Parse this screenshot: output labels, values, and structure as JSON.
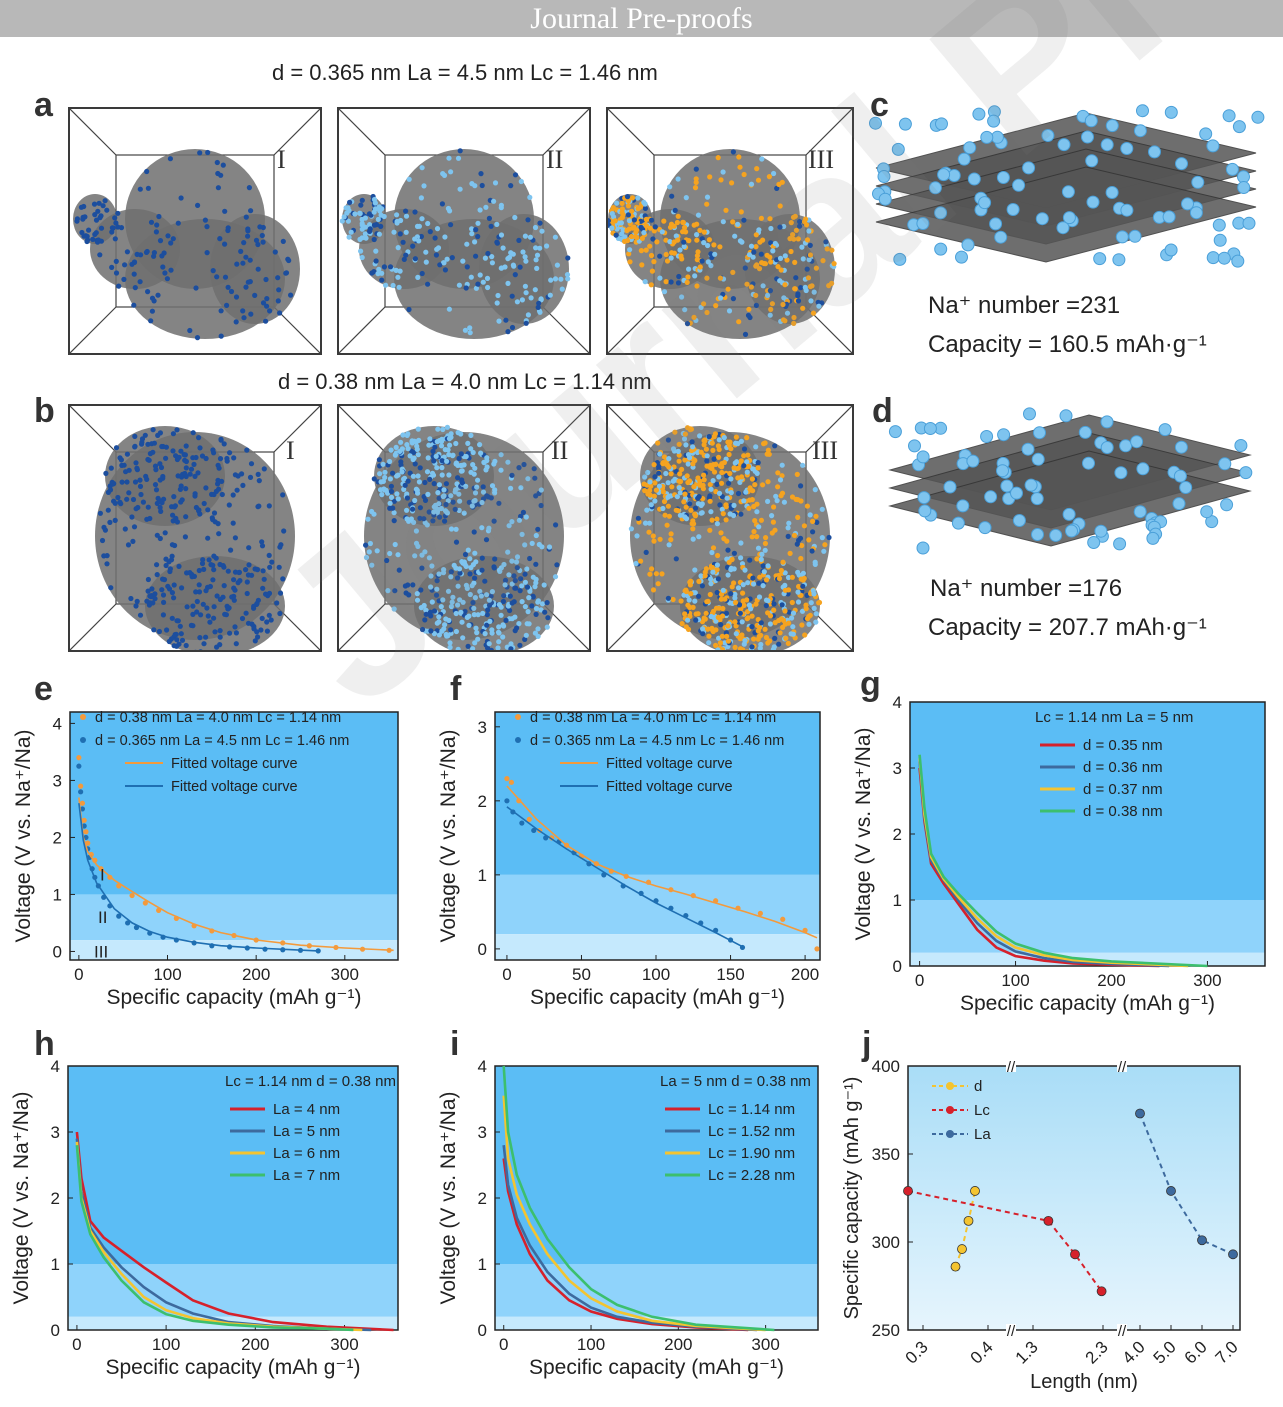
{
  "banner": "Journal Pre-proofs",
  "panel_letters": {
    "a": "a",
    "b": "b",
    "c": "c",
    "d": "d",
    "e": "e",
    "f": "f",
    "g": "g",
    "h": "h",
    "i": "i",
    "j": "j"
  },
  "row_a": {
    "caption_prefix": "d",
    "caption_rest": " = 0.365 nm  L",
    "caption": "d = 0.365 nm  La = 4.5 nm  Lc = 1.46 nm",
    "stages": [
      "I",
      "II",
      "III"
    ]
  },
  "row_b": {
    "caption": "d = 0.38 nm  La = 4.0 nm  Lc = 1.14 nm",
    "stages": [
      "I",
      "II",
      "III"
    ]
  },
  "panel_c": {
    "number_text": "Na⁺ number =231",
    "capacity_text": "Capacity = 160.5 mAh·g⁻¹"
  },
  "panel_d": {
    "number_text": "Na⁺ number =176",
    "capacity_text": "Capacity = 207.7 mAh·g⁻¹"
  },
  "colors": {
    "bg_top": "#5bbdf5",
    "bg_mid": "#8fd3fb",
    "bg_low": "#c5e9fd",
    "orange": "#f39a3c",
    "blue": "#1f6fb2",
    "red": "#d6212b",
    "steel": "#3d6a9e",
    "yellow": "#f4c430",
    "green": "#3cbf6e",
    "particle_dark": "#1c4e9e",
    "particle_light": "#7ec4ef",
    "particle_orange": "#f5a320",
    "graphite": "#6e6e6e"
  },
  "chart_data": [
    {
      "id": "e",
      "type": "scatter",
      "xlabel": "Specific capacity (mAh g⁻¹)",
      "ylabel": "Voltage (V vs. Na⁺/Na)",
      "xlim": [
        -10,
        360
      ],
      "ylim": [
        -0.15,
        4.2
      ],
      "xticks": [
        0,
        100,
        200,
        300
      ],
      "yticks": [
        0,
        1,
        2,
        3,
        4
      ],
      "regions": [
        "I",
        "II",
        "III"
      ],
      "legend": [
        "d = 0.38 nm La = 4.0 nm Lc = 1.14 nm",
        "d = 0.365 nm La = 4.5 nm Lc = 1.46 nm",
        "Fitted voltage curve",
        "Fitted voltage curve"
      ],
      "series": [
        {
          "name": "d = 0.38 nm",
          "color": "orange",
          "kind": "points",
          "x": [
            0,
            2,
            4,
            6,
            8,
            10,
            14,
            18,
            25,
            35,
            45,
            60,
            75,
            90,
            110,
            130,
            150,
            175,
            200,
            230,
            260,
            290,
            320,
            350
          ],
          "y": [
            3.4,
            2.9,
            2.6,
            2.3,
            2.1,
            1.9,
            1.7,
            1.6,
            1.45,
            1.3,
            1.15,
            0.98,
            0.85,
            0.72,
            0.58,
            0.45,
            0.36,
            0.28,
            0.2,
            0.15,
            0.1,
            0.07,
            0.04,
            0.02
          ]
        },
        {
          "name": "d = 0.365 nm",
          "color": "blue",
          "kind": "points",
          "x": [
            0,
            2,
            4,
            6,
            8,
            10,
            12,
            15,
            18,
            22,
            28,
            35,
            45,
            55,
            65,
            80,
            95,
            110,
            130,
            150,
            170,
            190,
            210,
            230,
            250,
            270
          ],
          "y": [
            3.25,
            2.8,
            2.5,
            2.2,
            2.0,
            1.8,
            1.65,
            1.45,
            1.3,
            1.15,
            0.95,
            0.8,
            0.62,
            0.5,
            0.42,
            0.32,
            0.25,
            0.2,
            0.15,
            0.1,
            0.08,
            0.06,
            0.04,
            0.03,
            0.02,
            0.01
          ]
        },
        {
          "name": "Fitted voltage curve",
          "color": "orange",
          "kind": "line",
          "x": [
            0,
            5,
            10,
            20,
            40,
            60,
            80,
            100,
            130,
            160,
            200,
            250,
            300,
            355
          ],
          "y": [
            2.7,
            2.0,
            1.75,
            1.52,
            1.25,
            1.05,
            0.86,
            0.68,
            0.48,
            0.33,
            0.2,
            0.11,
            0.06,
            0.02
          ]
        },
        {
          "name": "Fitted voltage curve",
          "color": "blue",
          "kind": "line",
          "x": [
            0,
            5,
            10,
            20,
            40,
            60,
            80,
            100,
            130,
            160,
            200,
            240,
            270
          ],
          "y": [
            2.6,
            1.95,
            1.6,
            1.2,
            0.75,
            0.5,
            0.35,
            0.25,
            0.16,
            0.1,
            0.06,
            0.03,
            0.01
          ]
        }
      ]
    },
    {
      "id": "f",
      "type": "scatter",
      "xlabel": "Specific capacity (mAh g⁻¹)",
      "ylabel": "Voltage (V vs. Na⁺/Na)",
      "xlim": [
        -8,
        210
      ],
      "ylim": [
        -0.15,
        3.2
      ],
      "xticks": [
        0,
        50,
        100,
        150,
        200
      ],
      "yticks": [
        0,
        1,
        2,
        3
      ],
      "legend": [
        "d = 0.38 nm La = 4.0 nm Lc = 1.14 nm",
        "d = 0.365 nm La = 4.5 nm Lc = 1.46 nm",
        "Fitted voltage curve",
        "Fitted voltage curve"
      ],
      "series": [
        {
          "name": "d = 0.38 nm",
          "color": "orange",
          "kind": "points",
          "x": [
            0,
            3,
            8,
            15,
            22,
            30,
            40,
            50,
            60,
            70,
            80,
            95,
            110,
            125,
            140,
            155,
            170,
            185,
            200,
            208
          ],
          "y": [
            2.3,
            2.25,
            2.0,
            1.75,
            1.6,
            1.5,
            1.4,
            1.25,
            1.15,
            1.05,
            0.98,
            0.9,
            0.8,
            0.72,
            0.65,
            0.55,
            0.48,
            0.4,
            0.25,
            0.0
          ]
        },
        {
          "name": "d = 0.365 nm",
          "color": "blue",
          "kind": "points",
          "x": [
            0,
            4,
            10,
            18,
            26,
            35,
            45,
            55,
            65,
            78,
            90,
            100,
            110,
            120,
            130,
            140,
            150,
            158
          ],
          "y": [
            2.0,
            1.85,
            1.7,
            1.6,
            1.5,
            1.45,
            1.3,
            1.15,
            1.0,
            0.85,
            0.75,
            0.65,
            0.55,
            0.45,
            0.35,
            0.25,
            0.12,
            0.02
          ]
        },
        {
          "name": "Fitted voltage curve",
          "color": "orange",
          "kind": "line",
          "x": [
            0,
            20,
            40,
            60,
            80,
            100,
            120,
            140,
            160,
            180,
            200,
            208
          ],
          "y": [
            2.2,
            1.75,
            1.4,
            1.15,
            0.98,
            0.85,
            0.74,
            0.62,
            0.5,
            0.37,
            0.22,
            0.15
          ]
        },
        {
          "name": "Fitted voltage curve",
          "color": "blue",
          "kind": "line",
          "x": [
            0,
            20,
            40,
            60,
            80,
            100,
            120,
            140,
            158
          ],
          "y": [
            1.92,
            1.62,
            1.35,
            1.1,
            0.85,
            0.62,
            0.42,
            0.22,
            0.03
          ]
        }
      ]
    },
    {
      "id": "g",
      "type": "line",
      "xlabel": "Specific capacity (mAh g⁻¹)",
      "ylabel": "Voltage (V vs. Na⁺/Na)",
      "xlim": [
        -10,
        360
      ],
      "ylim": [
        0,
        4
      ],
      "xticks": [
        0,
        100,
        200,
        300
      ],
      "yticks": [
        0,
        1,
        2,
        3,
        4
      ],
      "legend_title": "Lc = 1.14 nm   La = 5 nm",
      "series": [
        {
          "name": "d = 0.35 nm",
          "color": "red",
          "x": [
            0,
            5,
            12,
            25,
            40,
            60,
            80,
            100,
            130,
            160,
            200,
            250
          ],
          "y": [
            3.0,
            2.2,
            1.55,
            1.25,
            0.95,
            0.55,
            0.28,
            0.15,
            0.08,
            0.04,
            0.02,
            0.0
          ]
        },
        {
          "name": "d = 0.36 nm",
          "color": "steel",
          "x": [
            0,
            5,
            12,
            25,
            40,
            60,
            80,
            100,
            130,
            160,
            200,
            260
          ],
          "y": [
            3.1,
            2.25,
            1.6,
            1.3,
            1.0,
            0.65,
            0.38,
            0.22,
            0.12,
            0.06,
            0.03,
            0.0
          ]
        },
        {
          "name": "d = 0.37 nm",
          "color": "yellow",
          "x": [
            0,
            5,
            12,
            25,
            40,
            60,
            80,
            100,
            130,
            160,
            200,
            280
          ],
          "y": [
            3.15,
            2.3,
            1.65,
            1.32,
            1.05,
            0.72,
            0.45,
            0.28,
            0.16,
            0.09,
            0.05,
            0.0
          ]
        },
        {
          "name": "d = 0.38 nm",
          "color": "green",
          "x": [
            0,
            5,
            12,
            25,
            40,
            60,
            80,
            100,
            130,
            160,
            200,
            300
          ],
          "y": [
            3.2,
            2.4,
            1.7,
            1.35,
            1.1,
            0.8,
            0.52,
            0.34,
            0.2,
            0.12,
            0.07,
            0.0
          ]
        }
      ]
    },
    {
      "id": "h",
      "type": "line",
      "xlabel": "Specific capacity (mAh g⁻¹)",
      "ylabel": "Voltage (V vs. Na⁺/Na)",
      "xlim": [
        -10,
        360
      ],
      "ylim": [
        0,
        4
      ],
      "xticks": [
        0,
        100,
        200,
        300
      ],
      "yticks": [
        0,
        1,
        2,
        3,
        4
      ],
      "legend_title": "Lc = 1.14 nm   d = 0.38 nm",
      "series": [
        {
          "name": "La = 4 nm",
          "color": "red",
          "x": [
            0,
            5,
            15,
            30,
            50,
            75,
            100,
            130,
            170,
            220,
            280,
            355
          ],
          "y": [
            3.0,
            2.3,
            1.65,
            1.4,
            1.2,
            0.95,
            0.72,
            0.45,
            0.25,
            0.12,
            0.05,
            0.0
          ]
        },
        {
          "name": "La = 5 nm",
          "color": "steel",
          "x": [
            0,
            5,
            15,
            30,
            50,
            75,
            100,
            130,
            170,
            220,
            280,
            330
          ],
          "y": [
            2.9,
            2.1,
            1.55,
            1.25,
            0.95,
            0.65,
            0.42,
            0.25,
            0.12,
            0.06,
            0.02,
            0.0
          ]
        },
        {
          "name": "La = 6 nm",
          "color": "yellow",
          "x": [
            0,
            5,
            15,
            30,
            50,
            75,
            100,
            130,
            170,
            220,
            280,
            320
          ],
          "y": [
            2.85,
            2.0,
            1.5,
            1.18,
            0.85,
            0.5,
            0.3,
            0.18,
            0.1,
            0.05,
            0.02,
            0.0
          ]
        },
        {
          "name": "La = 7 nm",
          "color": "green",
          "x": [
            0,
            5,
            15,
            30,
            50,
            75,
            100,
            130,
            170,
            220,
            280,
            310
          ],
          "y": [
            2.8,
            1.95,
            1.45,
            1.1,
            0.75,
            0.42,
            0.24,
            0.14,
            0.08,
            0.04,
            0.02,
            0.0
          ]
        }
      ]
    },
    {
      "id": "i",
      "type": "line",
      "xlabel": "Specific capacity (mAh g⁻¹)",
      "ylabel": "Voltage (V vs. Na⁺/Na)",
      "xlim": [
        -10,
        360
      ],
      "ylim": [
        0,
        4
      ],
      "xticks": [
        0,
        100,
        200,
        300
      ],
      "yticks": [
        0,
        1,
        2,
        3,
        4
      ],
      "legend_title": "La = 5 nm   d = 0.38 nm",
      "series": [
        {
          "name": "Lc = 1.14 nm",
          "color": "red",
          "x": [
            0,
            5,
            15,
            30,
            50,
            75,
            100,
            130,
            170,
            220,
            280
          ],
          "y": [
            2.6,
            2.1,
            1.6,
            1.15,
            0.75,
            0.45,
            0.28,
            0.17,
            0.09,
            0.04,
            0.0
          ]
        },
        {
          "name": "Lc = 1.52 nm",
          "color": "steel",
          "x": [
            0,
            5,
            15,
            30,
            50,
            75,
            100,
            130,
            170,
            220,
            290
          ],
          "y": [
            2.8,
            2.2,
            1.7,
            1.28,
            0.88,
            0.55,
            0.34,
            0.2,
            0.11,
            0.05,
            0.0
          ]
        },
        {
          "name": "Lc = 1.90 nm",
          "color": "yellow",
          "x": [
            0,
            5,
            15,
            30,
            50,
            75,
            100,
            130,
            170,
            220,
            300
          ],
          "y": [
            3.55,
            2.6,
            2.05,
            1.6,
            1.15,
            0.75,
            0.48,
            0.28,
            0.14,
            0.06,
            0.0
          ]
        },
        {
          "name": "Lc = 2.28 nm",
          "color": "green",
          "x": [
            0,
            5,
            15,
            30,
            50,
            75,
            100,
            130,
            170,
            220,
            310
          ],
          "y": [
            4.0,
            3.0,
            2.35,
            1.85,
            1.38,
            0.95,
            0.62,
            0.38,
            0.2,
            0.08,
            0.0
          ]
        }
      ]
    },
    {
      "id": "j",
      "type": "scatter",
      "xlabel": "Length (nm)",
      "ylabel": "Specific capacity (mAh g⁻¹)",
      "ylim": [
        250,
        400
      ],
      "yticks": [
        250,
        300,
        350,
        400
      ],
      "xtick_labels": [
        "0.3",
        "0.4",
        "1.3",
        "2.3",
        "4.0",
        "5.0",
        "6.0",
        "7.0"
      ],
      "series": [
        {
          "name": "d",
          "color": "yellow",
          "x": [
            0.35,
            0.36,
            0.37,
            0.38
          ],
          "y": [
            286,
            296,
            312,
            329
          ]
        },
        {
          "name": "Lc",
          "color": "red",
          "x": [
            1.14,
            1.52,
            1.9,
            2.28
          ],
          "y": [
            329,
            312,
            293,
            272
          ]
        },
        {
          "name": "La",
          "color": "steel",
          "x": [
            4.0,
            5.0,
            6.0,
            7.0
          ],
          "y": [
            373,
            329,
            301,
            293
          ]
        }
      ]
    }
  ]
}
